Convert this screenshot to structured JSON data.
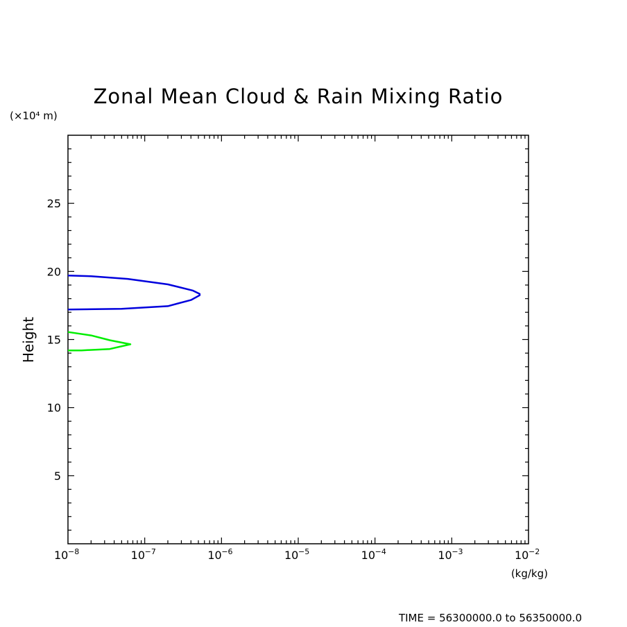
{
  "chart_data": {
    "type": "line",
    "title": "Zonal Mean Cloud & Rain Mixing Ratio",
    "y_unit_label": "(×10⁴ m)",
    "ylabel": "Height",
    "x_unit_label": "(kg/kg)",
    "x_scale": "log",
    "xlim": [
      1e-08,
      0.01
    ],
    "ylim": [
      0,
      30
    ],
    "x_ticks": [
      {
        "value": 1e-08,
        "base": "10",
        "exp": "−8"
      },
      {
        "value": 1e-07,
        "base": "10",
        "exp": "−7"
      },
      {
        "value": 1e-06,
        "base": "10",
        "exp": "−6"
      },
      {
        "value": 1e-05,
        "base": "10",
        "exp": "−5"
      },
      {
        "value": 0.0001,
        "base": "10",
        "exp": "−4"
      },
      {
        "value": 0.001,
        "base": "10",
        "exp": "−3"
      },
      {
        "value": 0.01,
        "base": "10",
        "exp": "−2"
      }
    ],
    "y_ticks": [
      5,
      10,
      15,
      20,
      25
    ],
    "series": [
      {
        "color": "#0000dd",
        "x": [
          1e-08,
          2e-08,
          6e-08,
          2e-07,
          4.2e-07,
          5.2e-07,
          5.2e-07,
          4e-07,
          2e-07,
          5e-08,
          1e-08
        ],
        "y": [
          19.7,
          19.65,
          19.45,
          19.05,
          18.6,
          18.35,
          18.25,
          17.9,
          17.45,
          17.25,
          17.2
        ]
      },
      {
        "color": "#00ee00",
        "x": [
          1e-08,
          2e-08,
          3.5e-08,
          6.5e-08,
          3.5e-08,
          1.5e-08,
          1e-08
        ],
        "y": [
          15.55,
          15.3,
          14.95,
          14.65,
          14.3,
          14.2,
          14.2
        ]
      }
    ],
    "grid": false,
    "footer": "TIME = 56300000.0 to 56350000.0"
  }
}
